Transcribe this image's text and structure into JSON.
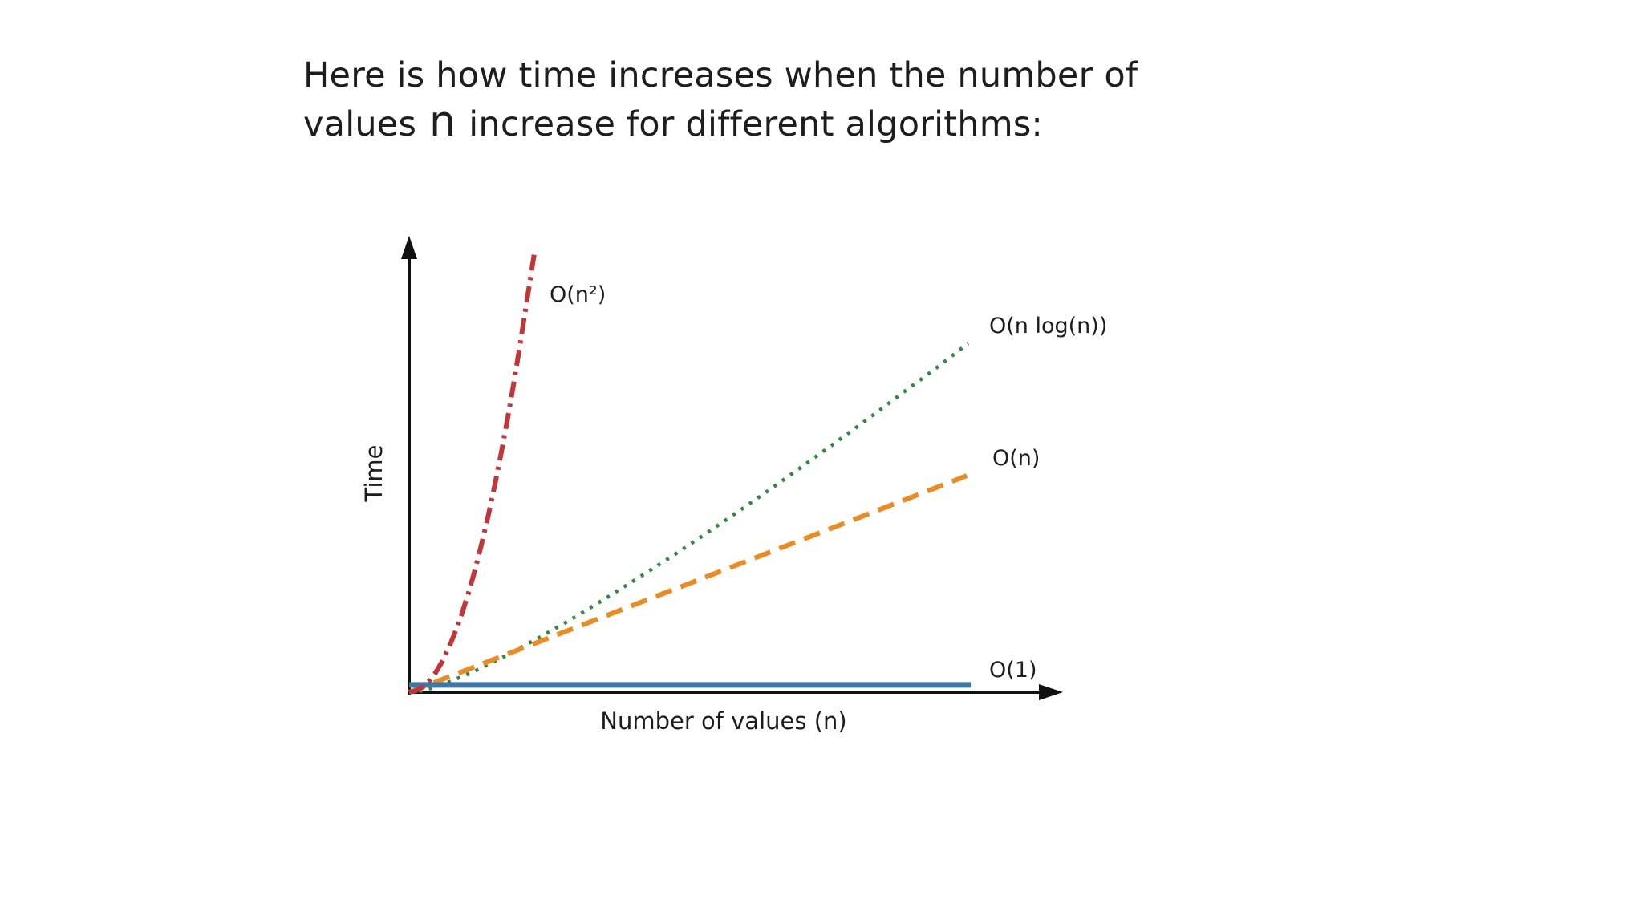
{
  "page": {
    "background": "#ffffff"
  },
  "heading": {
    "line1": "Here is how time increases when the number of",
    "line2_prefix": "values ",
    "line2_n": "n",
    "line2_suffix": " increase for different algorithms:"
  },
  "chart_data": {
    "type": "line",
    "title": "",
    "xlabel": "Number of values (n)",
    "ylabel": "Time",
    "x_range": [
      0,
      100
    ],
    "y_range": [
      0,
      100
    ],
    "grid": false,
    "axis_style": "arrow axes, no ticks, no tick labels",
    "legend_position": "inline labels at right ends of lines",
    "axis_color": "#111111",
    "series": [
      {
        "name": "o-n-squared",
        "label": "O(n²)",
        "color": "#c23539",
        "line_style": "dashdot",
        "line_width": 6,
        "points": [
          [
            0,
            0
          ],
          [
            1,
            0.3
          ],
          [
            2,
            1.1
          ],
          [
            3,
            2.4
          ],
          [
            4,
            4.2
          ],
          [
            5,
            6.6
          ],
          [
            6,
            9.6
          ],
          [
            7,
            13.0
          ],
          [
            8,
            17.0
          ],
          [
            9,
            21.5
          ],
          [
            10,
            26.5
          ],
          [
            11,
            32.1
          ],
          [
            12,
            38.2
          ],
          [
            13,
            44.9
          ],
          [
            14,
            52.0
          ],
          [
            15,
            59.7
          ],
          [
            16,
            67.9
          ],
          [
            17,
            76.7
          ],
          [
            18,
            86.0
          ],
          [
            19.2,
            97.0
          ]
        ]
      },
      {
        "name": "o-n-log-n",
        "label": "O(n log(n))",
        "color": "#2e8b3f",
        "line_style": "dotted",
        "line_width": 4.5,
        "points": [
          [
            0,
            0
          ],
          [
            2,
            0.3
          ],
          [
            3,
            0.7
          ],
          [
            5,
            1.6
          ],
          [
            10,
            4.6
          ],
          [
            15,
            8.2
          ],
          [
            20,
            12.1
          ],
          [
            25,
            16.2
          ],
          [
            30,
            20.6
          ],
          [
            35,
            25.1
          ],
          [
            40,
            29.7
          ],
          [
            45,
            34.5
          ],
          [
            50,
            39.4
          ],
          [
            55,
            44.4
          ],
          [
            60,
            49.5
          ],
          [
            65,
            54.7
          ],
          [
            70,
            59.9
          ],
          [
            75,
            65.3
          ],
          [
            80,
            70.6
          ],
          [
            85.5,
            76.7
          ]
        ]
      },
      {
        "name": "o-n",
        "label": "O(n)",
        "color": "#ec8b22",
        "line_style": "dashed",
        "line_width": 6,
        "points": [
          [
            0,
            0
          ],
          [
            85.3,
            47.6
          ]
        ]
      },
      {
        "name": "o-1",
        "label": "O(1)",
        "color": "#3f77a5",
        "line_style": "solid",
        "line_width": 7,
        "points": [
          [
            0,
            1.6
          ],
          [
            85.9,
            1.6
          ]
        ]
      }
    ]
  }
}
